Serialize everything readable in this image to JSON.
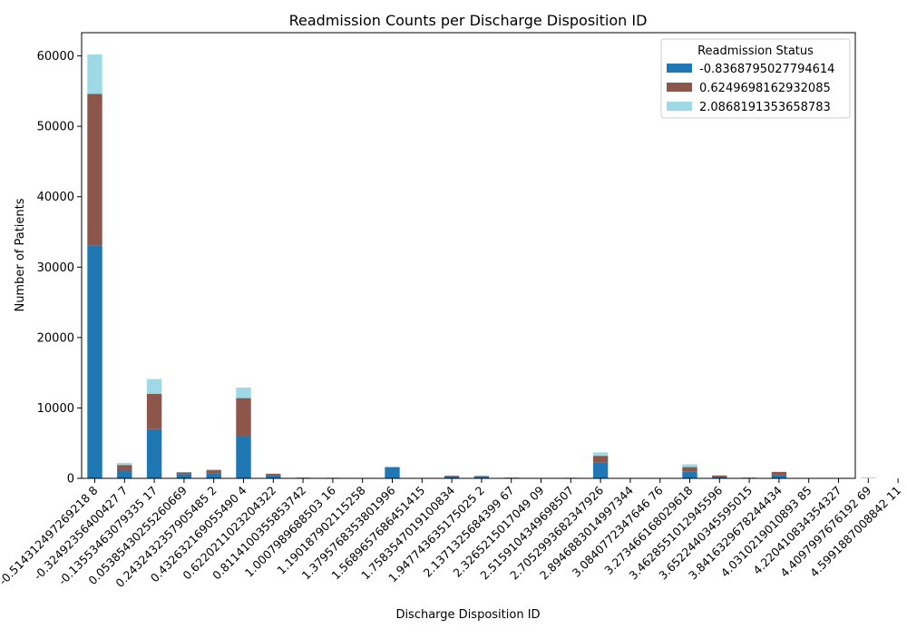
{
  "chart_data": {
    "type": "bar",
    "stacked": true,
    "title": "Readmission Counts per Discharge Disposition ID",
    "xlabel": "Discharge Disposition ID",
    "ylabel": "Number of Patients",
    "ylim": [
      0,
      63300
    ],
    "yticks": [
      0,
      10000,
      20000,
      30000,
      40000,
      50000,
      60000
    ],
    "ytick_labels": [
      "0",
      "10000",
      "20000",
      "30000",
      "40000",
      "50000",
      "60000"
    ],
    "grid": false,
    "legend": {
      "title": "Readmission Status",
      "placement": "top-right"
    },
    "categories": [
      "-0.514312497269218",
      "-0.32492356400427",
      "-0.13553463079335",
      "0.053854302552506",
      "0.243243235790548",
      "0.432632169055490",
      "0.622021102320432",
      "0.811410035585374",
      "1.000798968850316",
      "1.190187902115258",
      "1.379576835380199",
      "1.568965768645141",
      "1.758354701910083",
      "1.947743635175025",
      "2.137132568439967",
      "2.326521501704909",
      "2.515910434969850",
      "2.705299368234792",
      "2.894688301499734",
      "3.084077234764676",
      "3.273466168029618",
      "3.462855101294559",
      "3.652244034559501",
      "3.841632967824443",
      "4.031021901089385",
      "4.220410834354327",
      "4.409799767619269",
      "4.599188700884211"
    ],
    "tick_labels": [
      "-0.514312497269218 8",
      "-0.32492356400427 7",
      "-0.13553463079335 17",
      "0.05385430255260669",
      "0.2432432357905485 2",
      "0.432632169055490 4",
      "0.6220211023204322",
      "0.8114100355853742",
      "1.0007989688503 16",
      "1.190187902115258",
      "1.3795768353801996",
      "1.5689657686451415",
      "1.7583547019100834",
      "1.947743635175025 2",
      "2.1371325684399 67",
      "2.3265215017049 09",
      "2.5159104349698507",
      "2.7052993682347926",
      "2.8946883014997344",
      "3.0840772347646 76",
      "3.273466168029618",
      "3.4628551012945596",
      "3.6522440345595015",
      "3.8416329678244434",
      "4.0310219010893 85",
      "4.220410834354327",
      "4.4097997676192 69",
      "4.5991887008842 11"
    ],
    "series": [
      {
        "name": "-0.8368795027794614",
        "color": "#1f77b4",
        "values": [
          33100,
          1100,
          7000,
          600,
          750,
          6000,
          400,
          80,
          50,
          0,
          1600,
          0,
          300,
          300,
          80,
          0,
          30,
          2300,
          0,
          0,
          1000,
          250,
          80,
          500,
          0,
          0,
          30,
          0
        ]
      },
      {
        "name": "0.6249698162932085",
        "color": "#8c564b",
        "values": [
          21500,
          800,
          5000,
          250,
          400,
          5400,
          250,
          30,
          30,
          0,
          0,
          0,
          80,
          50,
          30,
          0,
          50,
          900,
          0,
          0,
          600,
          150,
          30,
          400,
          0,
          0,
          30,
          0
        ]
      },
      {
        "name": "2.0868191353658783",
        "color": "#9edae5",
        "values": [
          5600,
          300,
          2100,
          50,
          150,
          1500,
          30,
          10,
          10,
          0,
          0,
          0,
          20,
          10,
          10,
          0,
          10,
          500,
          0,
          0,
          400,
          50,
          10,
          50,
          0,
          0,
          10,
          0
        ]
      }
    ]
  }
}
